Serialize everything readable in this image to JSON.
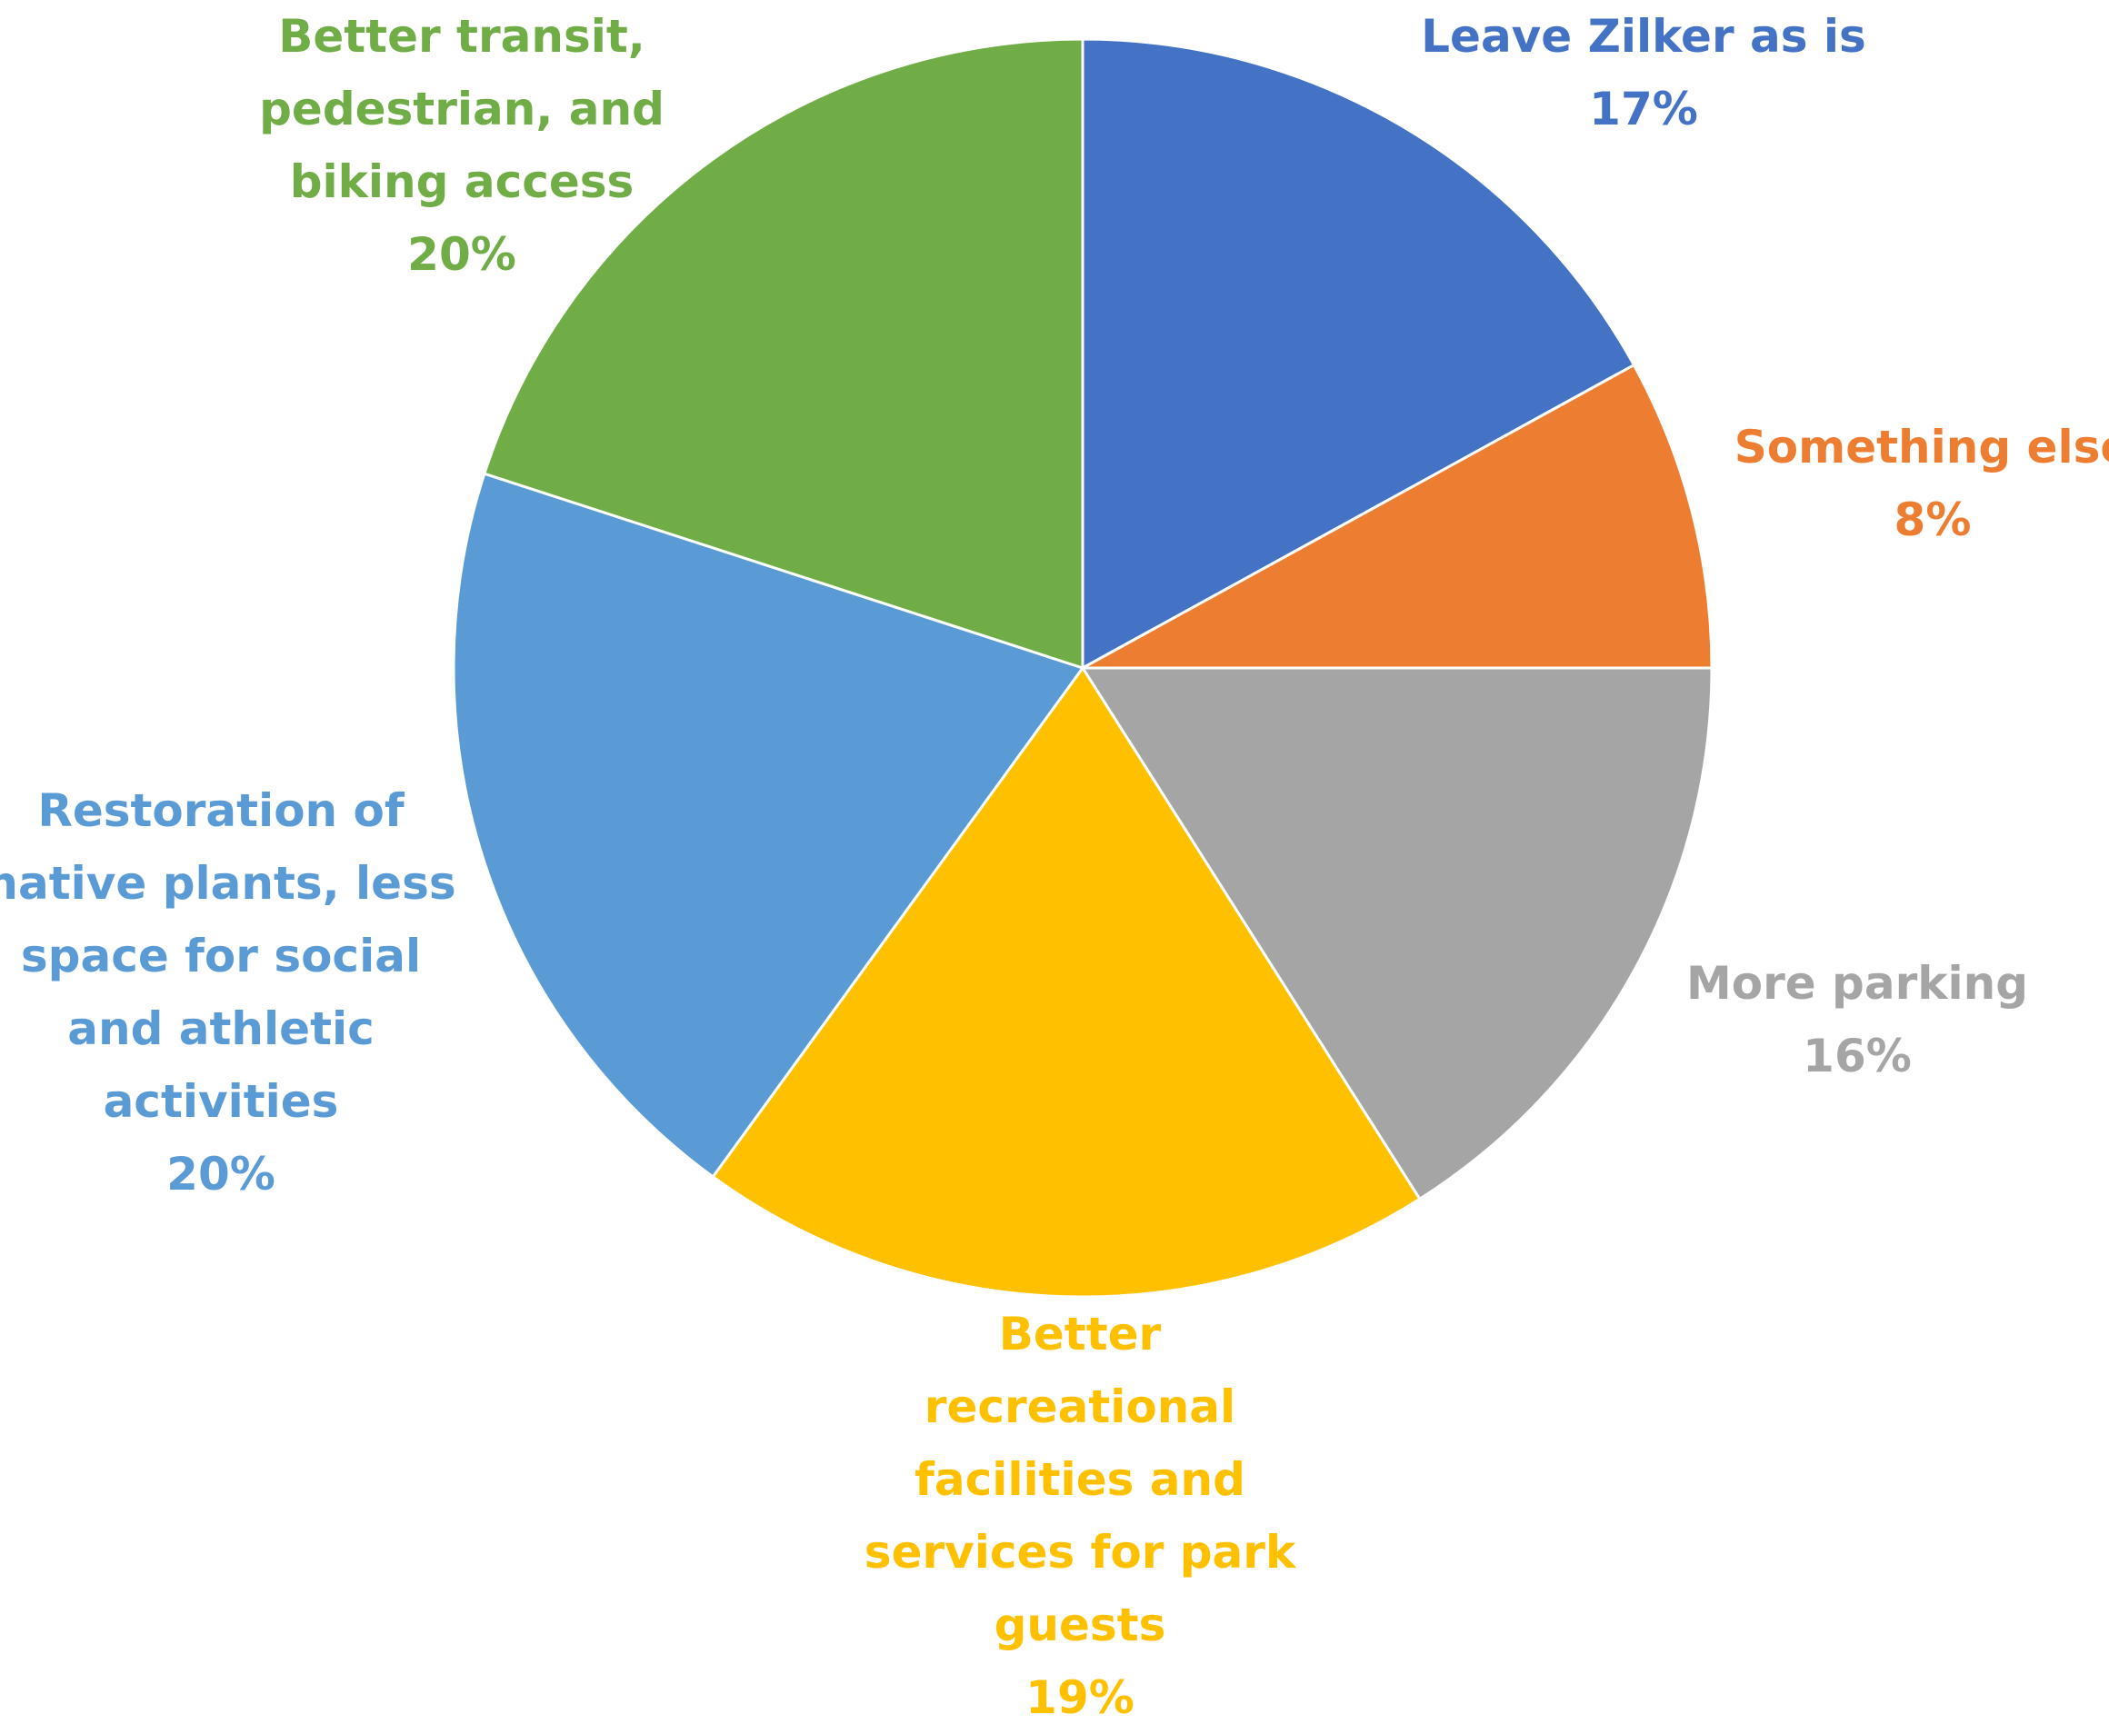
{
  "chart_data": {
    "type": "pie",
    "start_angle_deg": 0,
    "direction": "clockwise",
    "slices": [
      {
        "label_lines": [
          "Leave Zilker as is"
        ],
        "value_label": "17%",
        "value": 17,
        "color": "#4472C4"
      },
      {
        "label_lines": [
          "Something else"
        ],
        "value_label": "8%",
        "value": 8,
        "color": "#ED7D31"
      },
      {
        "label_lines": [
          "More parking"
        ],
        "value_label": "16%",
        "value": 16,
        "color": "#A5A5A5"
      },
      {
        "label_lines": [
          "Better",
          "recreational",
          "facilities and",
          "services for park",
          "guests"
        ],
        "value_label": "19%",
        "value": 19,
        "color": "#FFC000"
      },
      {
        "label_lines": [
          "Restoration of",
          "native plants, less",
          "space for social",
          "and athletic",
          "activities"
        ],
        "value_label": "20%",
        "value": 20,
        "color": "#5B9BD5"
      },
      {
        "label_lines": [
          "Better transit,",
          "pedestrian, and",
          "biking access"
        ],
        "value_label": "20%",
        "value": 20,
        "color": "#70AD47"
      }
    ]
  }
}
